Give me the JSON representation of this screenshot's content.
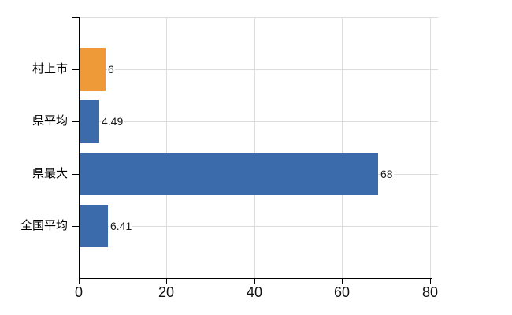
{
  "chart_data": {
    "type": "bar",
    "orientation": "horizontal",
    "title": "",
    "xlabel": "",
    "ylabel": "",
    "categories": [
      "村上市",
      "県平均",
      "県最大",
      "全国平均"
    ],
    "values": [
      6,
      4.49,
      68,
      6.41
    ],
    "value_labels": [
      "6",
      "4.49",
      "68",
      "6.41"
    ],
    "bar_colors": [
      "#ef9a38",
      "#3b6bab",
      "#3b6bab",
      "#3b6bab"
    ],
    "highlight_color": "#ef9a38",
    "series_color": "#3b6bab",
    "x_ticks": [
      0,
      20,
      40,
      60,
      80
    ],
    "x_tick_labels": [
      "0",
      "20",
      "40",
      "60",
      "80"
    ],
    "xlim": [
      0,
      81.8
    ],
    "grid": true,
    "grid_color": "#dcdcdc",
    "axis_color": "#000000",
    "legend": null
  }
}
